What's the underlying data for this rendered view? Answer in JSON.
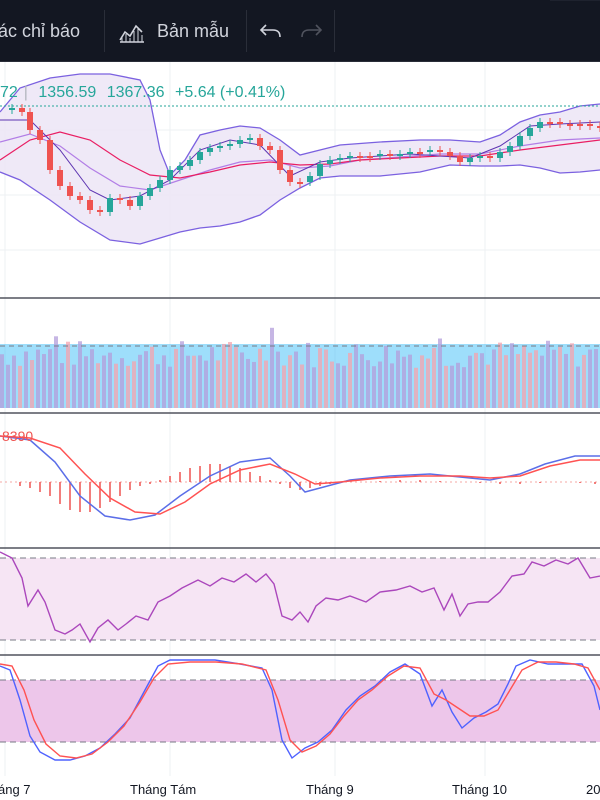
{
  "toolbar": {
    "indicators_label": "ác chỉ báo",
    "templates_label": "Bản mẫu",
    "templates_icon": "templates-icon",
    "undo_icon": "undo-icon",
    "redo_icon": "redo-icon"
  },
  "legend": {
    "low_partial": "72",
    "close": "1356.59",
    "high": "1367.36",
    "change": "+5.64 (+0.41%)"
  },
  "macd_value_partial": "8390",
  "colors": {
    "up": "#26a69a",
    "down": "#ef5350",
    "bb_band": "#7e57c2",
    "rsi_fill": "#f3e5f5",
    "stoch_fill": "#e1bee7",
    "toolbar_bg": "#131722"
  },
  "x_axis": {
    "ticks": [
      "áng 7",
      "Tháng Tám",
      "Tháng 9",
      "Tháng 10",
      "20"
    ]
  }
}
